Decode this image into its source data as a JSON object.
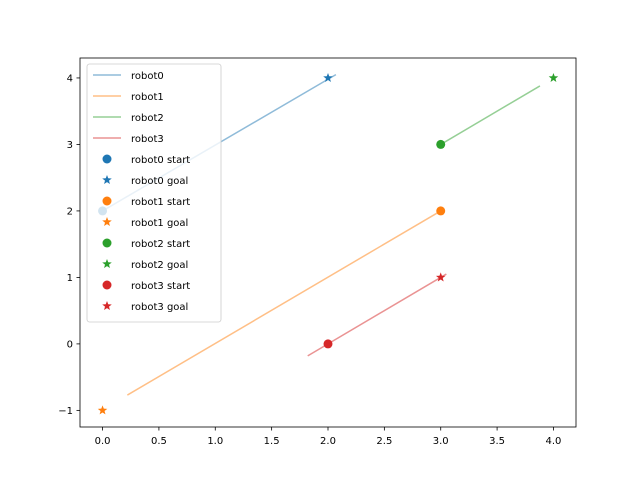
{
  "chart_data": {
    "type": "line",
    "title": "",
    "xlabel": "",
    "ylabel": "",
    "xlim": [
      -0.2,
      4.2
    ],
    "ylim": [
      -1.25,
      4.3
    ],
    "xticks": [
      0.0,
      0.5,
      1.0,
      1.5,
      2.0,
      2.5,
      3.0,
      3.5,
      4.0
    ],
    "xtick_labels": [
      "0.0",
      "0.5",
      "1.0",
      "1.5",
      "2.0",
      "2.5",
      "3.0",
      "3.5",
      "4.0"
    ],
    "yticks": [
      -1,
      0,
      1,
      2,
      3,
      4
    ],
    "ytick_labels": [
      "−1",
      "0",
      "1",
      "2",
      "3",
      "4"
    ],
    "grid": false,
    "legend_position": "upper-left",
    "series": [
      {
        "name": "robot0",
        "color": "#1f77b4",
        "path": [
          [
            0.0,
            2.0
          ],
          [
            2.07,
            4.05
          ]
        ]
      },
      {
        "name": "robot1",
        "color": "#ff7f0e",
        "path": [
          [
            0.22,
            -0.77
          ],
          [
            3.0,
            2.0
          ]
        ]
      },
      {
        "name": "robot2",
        "color": "#2ca02c",
        "path": [
          [
            3.0,
            3.0
          ],
          [
            3.88,
            3.88
          ]
        ]
      },
      {
        "name": "robot3",
        "color": "#d62728",
        "path": [
          [
            1.82,
            -0.18
          ],
          [
            3.05,
            1.05
          ]
        ]
      }
    ],
    "starts": [
      {
        "name": "robot0 start",
        "color": "#1f77b4",
        "x": 0,
        "y": 2
      },
      {
        "name": "robot1 start",
        "color": "#ff7f0e",
        "x": 3,
        "y": 2
      },
      {
        "name": "robot2 start",
        "color": "#2ca02c",
        "x": 3,
        "y": 3
      },
      {
        "name": "robot3 start",
        "color": "#d62728",
        "x": 2,
        "y": 0
      }
    ],
    "goals": [
      {
        "name": "robot0 goal",
        "color": "#1f77b4",
        "x": 2,
        "y": 4
      },
      {
        "name": "robot1 goal",
        "color": "#ff7f0e",
        "x": 0,
        "y": -1
      },
      {
        "name": "robot2 goal",
        "color": "#2ca02c",
        "x": 4,
        "y": 4
      },
      {
        "name": "robot3 goal",
        "color": "#d62728",
        "x": 3,
        "y": 1
      }
    ],
    "legend": [
      {
        "label": "robot0",
        "kind": "line",
        "color": "#1f77b4"
      },
      {
        "label": "robot1",
        "kind": "line",
        "color": "#ff7f0e"
      },
      {
        "label": "robot2",
        "kind": "line",
        "color": "#2ca02c"
      },
      {
        "label": "robot3",
        "kind": "line",
        "color": "#d62728"
      },
      {
        "label": "robot0 start",
        "kind": "circle",
        "color": "#1f77b4"
      },
      {
        "label": "robot0 goal",
        "kind": "star",
        "color": "#1f77b4"
      },
      {
        "label": "robot1 start",
        "kind": "circle",
        "color": "#ff7f0e"
      },
      {
        "label": "robot1 goal",
        "kind": "star",
        "color": "#ff7f0e"
      },
      {
        "label": "robot2 start",
        "kind": "circle",
        "color": "#2ca02c"
      },
      {
        "label": "robot2 goal",
        "kind": "star",
        "color": "#2ca02c"
      },
      {
        "label": "robot3 start",
        "kind": "circle",
        "color": "#d62728"
      },
      {
        "label": "robot3 goal",
        "kind": "star",
        "color": "#d62728"
      }
    ]
  }
}
